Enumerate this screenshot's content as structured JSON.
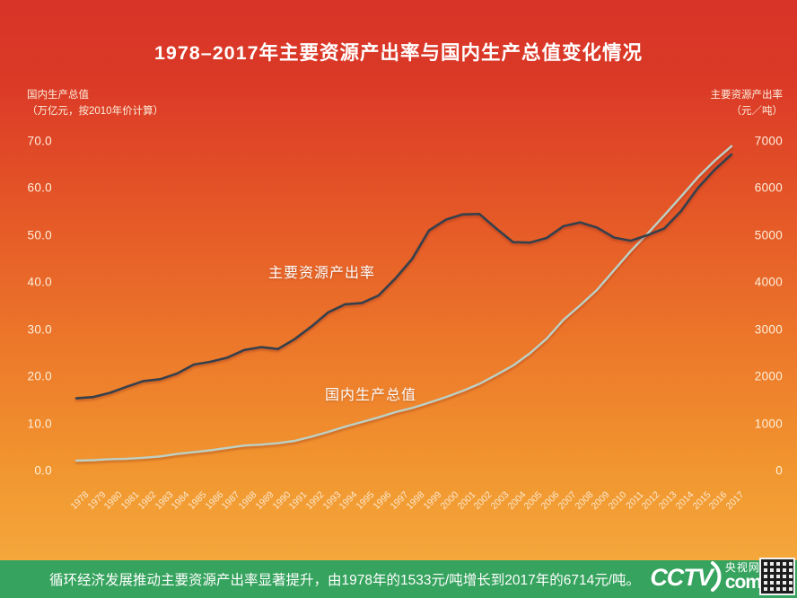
{
  "title": "1978–2017年主要资源产出率与国内生产总值变化情况",
  "series_labels": {
    "rate": "主要资源产出率",
    "gdp": "国内生产总值"
  },
  "footer": {
    "caption": "循环经济发展推动主要资源产出率显著提升，由1978年的1533元/吨增长到2017年的6714元/吨。",
    "logo": {
      "cctv": "CCTV",
      "site": "央视网",
      "domain": "com"
    },
    "bar_color": "#36a35e"
  },
  "colors": {
    "background_top": "#d83428",
    "background_bottom": "#f6ab3e",
    "rate_line": "#36414c",
    "gdp_line": "#bdd0c4",
    "text": "#ffffff"
  },
  "chart_data": {
    "type": "line",
    "title": "1978–2017年主要资源产出率与国内生产总值变化情况",
    "x": [
      1978,
      1979,
      1980,
      1981,
      1982,
      1983,
      1984,
      1985,
      1986,
      1987,
      1988,
      1989,
      1990,
      1991,
      1992,
      1993,
      1994,
      1995,
      1996,
      1997,
      1998,
      1999,
      2000,
      2001,
      2002,
      2003,
      2004,
      2005,
      2006,
      2007,
      2008,
      2009,
      2010,
      2011,
      2012,
      2013,
      2014,
      2015,
      2016,
      2017
    ],
    "series": [
      {
        "name": "主要资源产出率",
        "axis": "right",
        "unit": "元/吨",
        "color": "#36414c",
        "values": [
          1533,
          1560,
          1650,
          1780,
          1900,
          1940,
          2060,
          2250,
          2310,
          2400,
          2560,
          2620,
          2580,
          2790,
          3060,
          3360,
          3530,
          3560,
          3720,
          4080,
          4500,
          5100,
          5330,
          5440,
          5450,
          5140,
          4850,
          4840,
          4940,
          5190,
          5270,
          5160,
          4950,
          4880,
          5000,
          5140,
          5510,
          6000,
          6390,
          6714
        ]
      },
      {
        "name": "国内生产总值",
        "axis": "left",
        "unit": "万亿元（2010年价）",
        "color": "#bdd0c4",
        "values": [
          2.1,
          2.2,
          2.4,
          2.5,
          2.7,
          3.0,
          3.5,
          3.9,
          4.3,
          4.8,
          5.3,
          5.5,
          5.8,
          6.3,
          7.2,
          8.2,
          9.3,
          10.3,
          11.3,
          12.4,
          13.3,
          14.4,
          15.6,
          16.9,
          18.4,
          20.3,
          22.3,
          24.9,
          28.0,
          32.0,
          35.1,
          38.4,
          42.5,
          46.6,
          50.3,
          54.2,
          58.2,
          62.3,
          65.8,
          68.9
        ]
      }
    ],
    "left_axis": {
      "label": "国内生产总值",
      "unit": "（万亿元，按2010年价计算）",
      "range": [
        0,
        70
      ],
      "ticks": [
        70,
        60,
        50,
        40,
        30,
        20,
        10,
        0
      ]
    },
    "right_axis": {
      "label": "主要资源产出率",
      "unit": "（元／吨）",
      "range": [
        0,
        7000
      ],
      "ticks": [
        7000,
        6000,
        5000,
        4000,
        3000,
        2000,
        1000,
        0
      ]
    },
    "grid": false,
    "legend_position": "inline-annotations",
    "key_points": {
      "rate_1978": "1533元/吨",
      "rate_2017": "6714元/吨"
    }
  }
}
